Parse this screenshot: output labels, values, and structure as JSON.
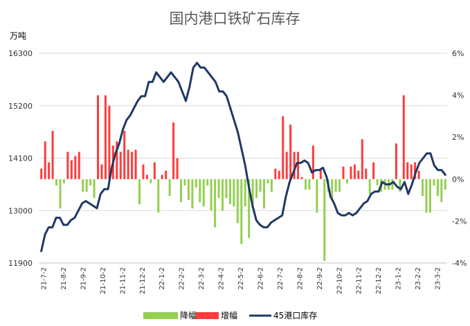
{
  "chart_data": {
    "type": "bar",
    "title": "国内港口铁矿石库存",
    "y_left_unit": "万吨",
    "y_left_ticks": [
      "16300",
      "15200",
      "14100",
      "13000",
      "11900"
    ],
    "y_left_range": [
      11900,
      16300
    ],
    "y_right_ticks": [
      "6%",
      "4%",
      "2%",
      "0%",
      "-2%",
      "-4%"
    ],
    "y_right_range": [
      -4,
      6
    ],
    "x_tick_labels": [
      "21-7-2",
      "21-8-2",
      "21-9-2",
      "21-10-2",
      "21-11-2",
      "21-12-2",
      "22-1-2",
      "22-2-2",
      "22-3-2",
      "22-4-2",
      "22-5-2",
      "22-6-2",
      "22-7-2",
      "22-8-2",
      "22-9-2",
      "22-10-2",
      "22-11-2",
      "22-12-2",
      "23-1-2",
      "23-2-2",
      "23-3-2"
    ],
    "grid": true,
    "legend_position": "bottom",
    "colors": {
      "decrease": "#92D050",
      "increase": "#FF3B3B",
      "line": "#1F3864",
      "grid": "#D9D9D9"
    },
    "series": [
      {
        "name": "降幅",
        "kind": "bar",
        "axis": "right",
        "sign": "negative"
      },
      {
        "name": "增幅",
        "kind": "bar",
        "axis": "right",
        "sign": "positive"
      },
      {
        "name": "45港口库存",
        "kind": "line",
        "axis": "left"
      }
    ],
    "change_pct": [
      0.5,
      1.8,
      0.8,
      2.3,
      -0.3,
      -1.4,
      -0.2,
      1.3,
      0.9,
      1.1,
      1.3,
      -0.6,
      -0.6,
      -0.3,
      -0.9,
      4.0,
      0.7,
      4.0,
      3.5,
      1.6,
      1.8,
      1.3,
      2.3,
      1.4,
      1.3,
      1.4,
      -1.2,
      0.7,
      0.2,
      -0.2,
      0.8,
      -1.6,
      0.2,
      0.4,
      -0.8,
      2.7,
      1.0,
      -1.1,
      -0.3,
      -1.0,
      -1.4,
      -0.4,
      -1.1,
      -1.3,
      -0.3,
      -1.5,
      -2.3,
      -0.9,
      -1.5,
      -0.9,
      -1.2,
      -1.3,
      -2.1,
      -3.1,
      -1.3,
      -2.8,
      -1.4,
      -0.9,
      -0.6,
      -1.4,
      -0.2,
      -0.6,
      0.5,
      0.4,
      3.0,
      1.3,
      2.6,
      1.3,
      1.3,
      0.1,
      -0.5,
      -0.5,
      1.6,
      -1.6,
      0.5,
      -3.9,
      -0.6,
      -1.0,
      -0.6,
      -0.6,
      0.6,
      -0.2,
      0.6,
      0.7,
      0.4,
      1.9,
      0.5,
      -0.7,
      0.8,
      -0.3,
      -0.6,
      -0.5,
      -0.5,
      -0.5,
      1.7,
      -0.6,
      4.0,
      0.8,
      0.7,
      0.8,
      0.4,
      -0.8,
      -1.6,
      -1.6,
      -0.3,
      -0.8,
      -1.1,
      -0.5
    ],
    "inventory": [
      12150,
      12500,
      12650,
      12650,
      12850,
      12850,
      12700,
      12700,
      12800,
      12850,
      13000,
      13150,
      13200,
      13150,
      13100,
      13050,
      13350,
      13450,
      13450,
      13900,
      14200,
      14400,
      14700,
      14900,
      15000,
      15150,
      15300,
      15400,
      15400,
      15700,
      15700,
      15900,
      15800,
      15700,
      15800,
      15900,
      15800,
      15700,
      15500,
      15300,
      15600,
      16000,
      16100,
      16000,
      16000,
      15900,
      15800,
      15700,
      15500,
      15500,
      15400,
      15150,
      14900,
      14650,
      14300,
      13950,
      13500,
      13100,
      12800,
      12700,
      12650,
      12650,
      12750,
      12800,
      12850,
      12900,
      13300,
      13600,
      13800,
      14000,
      14000,
      14050,
      14000,
      13800,
      13850,
      13850,
      13900,
      13700,
      13300,
      13150,
      12950,
      12900,
      12900,
      12950,
      12900,
      12950,
      13050,
      13150,
      13200,
      13350,
      13400,
      13400,
      13600,
      13550,
      13550,
      13600,
      13500,
      13450,
      13600,
      13350,
      13550,
      13800,
      14000,
      14100,
      14200,
      14200,
      13950,
      13850,
      13850,
      13750
    ]
  }
}
